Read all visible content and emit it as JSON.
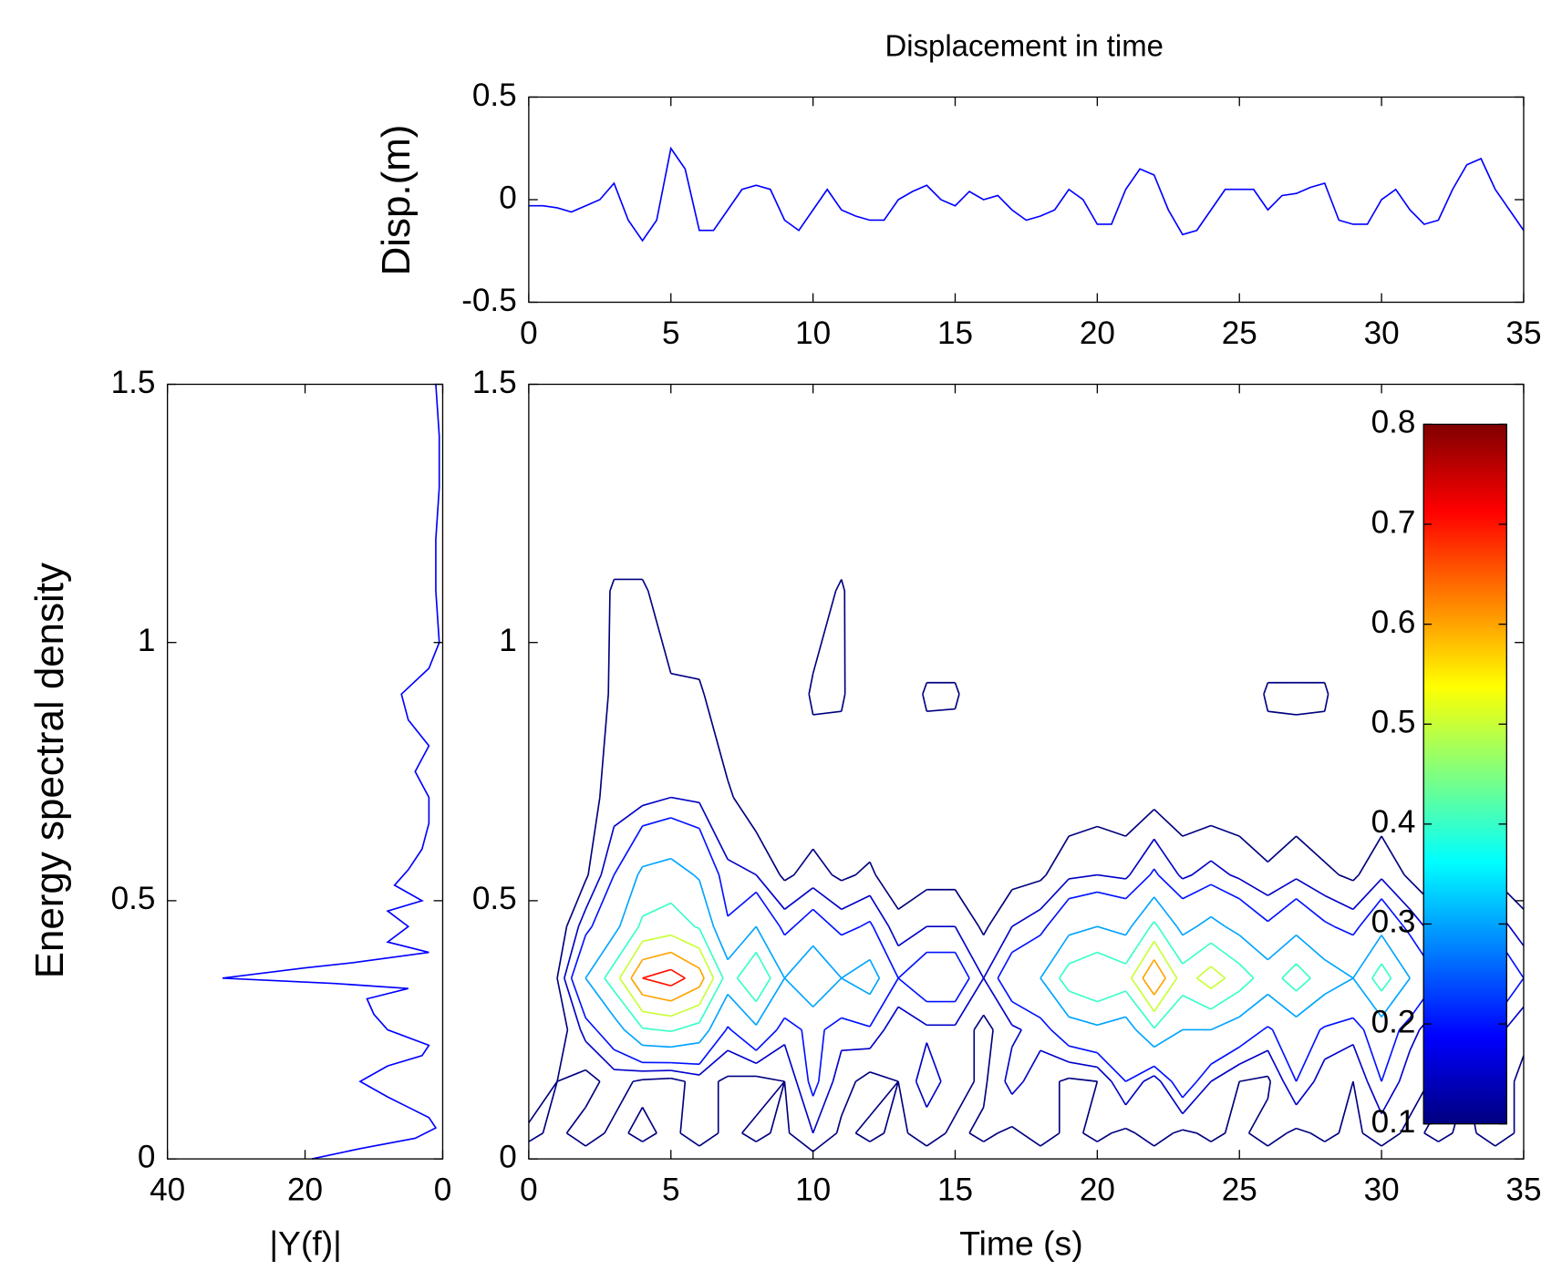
{
  "chart_data": [
    {
      "type": "line",
      "title": "Displacement in time",
      "ylabel": "Disp.(m)",
      "xlim": [
        0,
        35
      ],
      "xticks": [
        0,
        5,
        10,
        15,
        20,
        25,
        30,
        35
      ],
      "ylim": [
        -0.5,
        0.5
      ],
      "yticks": [
        -0.5,
        0,
        0.5
      ],
      "x": [
        0,
        0.5,
        1,
        1.5,
        2,
        2.5,
        3,
        3.5,
        4,
        4.5,
        5,
        5.5,
        6,
        6.5,
        7,
        7.5,
        8,
        8.5,
        9,
        9.5,
        10,
        10.5,
        11,
        11.5,
        12,
        12.5,
        13,
        13.5,
        14,
        14.5,
        15,
        15.5,
        16,
        16.5,
        17,
        17.5,
        18,
        18.5,
        19,
        19.5,
        20,
        20.5,
        21,
        21.5,
        22,
        22.5,
        23,
        23.5,
        24,
        24.5,
        25,
        25.5,
        26,
        26.5,
        27,
        27.5,
        28,
        28.5,
        29,
        29.5,
        30,
        30.5,
        31,
        31.5,
        32,
        32.5,
        33,
        33.5,
        34,
        34.5,
        35
      ],
      "series": [
        {
          "color": "#0000ff",
          "values": [
            -0.03,
            -0.03,
            -0.04,
            -0.06,
            -0.03,
            0.0,
            0.08,
            -0.1,
            -0.2,
            -0.1,
            0.25,
            0.15,
            -0.15,
            -0.15,
            -0.05,
            0.05,
            0.07,
            0.05,
            -0.1,
            -0.15,
            -0.05,
            0.05,
            -0.05,
            -0.08,
            -0.1,
            -0.1,
            0.0,
            0.04,
            0.07,
            0.0,
            -0.03,
            0.04,
            0.0,
            0.02,
            -0.05,
            -0.1,
            -0.08,
            -0.05,
            0.05,
            0.0,
            -0.12,
            -0.12,
            0.05,
            0.15,
            0.12,
            -0.05,
            -0.17,
            -0.15,
            -0.05,
            0.05,
            0.05,
            0.05,
            -0.05,
            0.02,
            0.03,
            0.06,
            0.08,
            -0.1,
            -0.12,
            -0.12,
            0.0,
            0.05,
            -0.05,
            -0.12,
            -0.1,
            0.05,
            0.17,
            0.2,
            0.05,
            -0.05,
            -0.15
          ]
        }
      ]
    },
    {
      "type": "line",
      "orientation": "horizontal",
      "xlabel": "|Y(f)|",
      "ylabel": "Energy spectral density",
      "xlim": [
        40,
        0
      ],
      "xticks": [
        40,
        20,
        0
      ],
      "ylim": [
        0,
        1.5
      ],
      "yticks": [
        0,
        0.5,
        1,
        1.5
      ],
      "y": [
        0,
        0.02,
        0.04,
        0.06,
        0.08,
        0.1,
        0.12,
        0.15,
        0.18,
        0.2,
        0.22,
        0.25,
        0.28,
        0.31,
        0.33,
        0.34,
        0.35,
        0.37,
        0.38,
        0.4,
        0.42,
        0.45,
        0.48,
        0.5,
        0.53,
        0.56,
        0.6,
        0.65,
        0.7,
        0.75,
        0.8,
        0.85,
        0.9,
        0.95,
        1.0,
        1.1,
        1.2,
        1.3,
        1.4,
        1.5
      ],
      "series": [
        {
          "color": "#0000ff",
          "values": [
            19,
            12,
            4,
            1,
            2,
            5,
            8,
            12,
            8,
            3,
            2,
            8,
            10,
            11,
            5,
            16,
            32,
            20,
            13,
            2,
            8,
            5,
            8,
            3,
            7,
            5,
            3,
            2,
            2,
            4,
            2,
            5,
            6,
            2,
            0.5,
            1,
            1,
            0.5,
            0.5,
            1
          ]
        }
      ]
    },
    {
      "type": "contour",
      "xlabel": "Time (s)",
      "colormap": "jet",
      "xlim": [
        0,
        35
      ],
      "xticks": [
        0,
        5,
        10,
        15,
        20,
        25,
        30,
        35
      ],
      "ylim": [
        0,
        1.5
      ],
      "yticks": [
        0,
        0.5,
        1,
        1.5
      ],
      "levels": [
        0.1,
        0.15,
        0.2,
        0.3,
        0.4,
        0.5,
        0.6,
        0.7
      ],
      "clim": [
        0.1,
        0.8
      ],
      "cticks": [
        0.1,
        0.2,
        0.3,
        0.4,
        0.5,
        0.6,
        0.7,
        0.8
      ],
      "x": [
        0,
        1,
        2,
        3,
        4,
        5,
        6,
        7,
        8,
        9,
        10,
        11,
        12,
        13,
        14,
        15,
        16,
        17,
        18,
        19,
        20,
        21,
        22,
        23,
        24,
        25,
        26,
        27,
        28,
        29,
        30,
        31,
        32,
        33,
        34,
        35
      ],
      "y": [
        0,
        0.05,
        0.15,
        0.25,
        0.35,
        0.45,
        0.55,
        0.7,
        0.9,
        1.1,
        1.3,
        1.5
      ],
      "z": [
        [
          0.08,
          0.08,
          0.08,
          0.08,
          0.08,
          0.08,
          0.08,
          0.08,
          0.08,
          0.08,
          0.08,
          0.08,
          0.08,
          0.08,
          0.08,
          0.08,
          0.08,
          0.08,
          0.08,
          0.08,
          0.08,
          0.08,
          0.08,
          0.08,
          0.08,
          0.08,
          0.08,
          0.08,
          0.08,
          0.08,
          0.08,
          0.08,
          0.08,
          0.08,
          0.08,
          0.08
        ],
        [
          0.11,
          0.09,
          0.12,
          0.09,
          0.11,
          0.09,
          0.12,
          0.09,
          0.11,
          0.09,
          0.15,
          0.09,
          0.11,
          0.09,
          0.12,
          0.09,
          0.11,
          0.09,
          0.12,
          0.09,
          0.11,
          0.09,
          0.12,
          0.09,
          0.11,
          0.09,
          0.12,
          0.09,
          0.11,
          0.09,
          0.12,
          0.09,
          0.11,
          0.09,
          0.12,
          0.09
        ],
        [
          0.06,
          0.1,
          0.08,
          0.12,
          0.09,
          0.08,
          0.12,
          0.09,
          0.08,
          0.1,
          0.22,
          0.12,
          0.08,
          0.1,
          0.18,
          0.12,
          0.09,
          0.17,
          0.12,
          0.09,
          0.1,
          0.2,
          0.12,
          0.25,
          0.15,
          0.1,
          0.09,
          0.2,
          0.12,
          0.1,
          0.2,
          0.12,
          0.09,
          0.1,
          0.12,
          0.09
        ],
        [
          0.03,
          0.06,
          0.17,
          0.25,
          0.39,
          0.41,
          0.36,
          0.19,
          0.28,
          0.17,
          0.22,
          0.17,
          0.19,
          0.11,
          0.14,
          0.14,
          0.08,
          0.14,
          0.17,
          0.25,
          0.28,
          0.25,
          0.39,
          0.3,
          0.3,
          0.25,
          0.19,
          0.25,
          0.19,
          0.17,
          0.25,
          0.17,
          0.11,
          0.08,
          0.17,
          0.11
        ],
        [
          0.05,
          0.1,
          0.3,
          0.45,
          0.7,
          0.75,
          0.65,
          0.35,
          0.5,
          0.3,
          0.4,
          0.3,
          0.35,
          0.2,
          0.25,
          0.25,
          0.15,
          0.25,
          0.3,
          0.45,
          0.5,
          0.45,
          0.7,
          0.45,
          0.55,
          0.45,
          0.35,
          0.45,
          0.35,
          0.3,
          0.45,
          0.3,
          0.2,
          0.15,
          0.3,
          0.2
        ],
        [
          0.03,
          0.06,
          0.18,
          0.27,
          0.42,
          0.45,
          0.39,
          0.21,
          0.3,
          0.18,
          0.24,
          0.18,
          0.21,
          0.12,
          0.15,
          0.15,
          0.09,
          0.15,
          0.18,
          0.27,
          0.3,
          0.27,
          0.42,
          0.27,
          0.33,
          0.27,
          0.21,
          0.27,
          0.21,
          0.18,
          0.27,
          0.18,
          0.12,
          0.09,
          0.18,
          0.12
        ],
        [
          0.02,
          0.03,
          0.09,
          0.2,
          0.32,
          0.34,
          0.29,
          0.16,
          0.15,
          0.09,
          0.12,
          0.09,
          0.11,
          0.06,
          0.08,
          0.08,
          0.05,
          0.08,
          0.09,
          0.14,
          0.15,
          0.14,
          0.21,
          0.14,
          0.17,
          0.14,
          0.11,
          0.14,
          0.11,
          0.09,
          0.14,
          0.09,
          0.06,
          0.05,
          0.09,
          0.06
        ],
        [
          0.03,
          0.04,
          0.08,
          0.12,
          0.13,
          0.15,
          0.14,
          0.11,
          0.06,
          0.05,
          0.06,
          0.05,
          0.05,
          0.04,
          0.05,
          0.04,
          0.03,
          0.04,
          0.05,
          0.06,
          0.07,
          0.06,
          0.08,
          0.06,
          0.06,
          0.06,
          0.05,
          0.06,
          0.05,
          0.05,
          0.06,
          0.05,
          0.04,
          0.03,
          0.05,
          0.04
        ],
        [
          0.02,
          0.03,
          0.06,
          0.11,
          0.11,
          0.11,
          0.11,
          0.05,
          0.03,
          0.04,
          0.11,
          0.11,
          0.03,
          0.04,
          0.11,
          0.11,
          0.04,
          0.03,
          0.03,
          0.03,
          0.03,
          0.03,
          0.03,
          0.03,
          0.03,
          0.04,
          0.11,
          0.11,
          0.11,
          0.03,
          0.03,
          0.03,
          0.03,
          0.03,
          0.03,
          0.03
        ],
        [
          0.02,
          0.02,
          0.04,
          0.11,
          0.11,
          0.06,
          0.04,
          0.02,
          0.02,
          0.02,
          0.06,
          0.11,
          0.02,
          0.02,
          0.02,
          0.02,
          0.02,
          0.02,
          0.02,
          0.02,
          0.02,
          0.02,
          0.02,
          0.02,
          0.02,
          0.02,
          0.02,
          0.02,
          0.02,
          0.02,
          0.02,
          0.02,
          0.02,
          0.02,
          0.02,
          0.02
        ],
        [
          0.02,
          0.02,
          0.02,
          0.02,
          0.02,
          0.02,
          0.02,
          0.02,
          0.02,
          0.02,
          0.02,
          0.02,
          0.02,
          0.02,
          0.02,
          0.02,
          0.02,
          0.02,
          0.02,
          0.02,
          0.02,
          0.02,
          0.02,
          0.02,
          0.02,
          0.02,
          0.02,
          0.02,
          0.02,
          0.02,
          0.02,
          0.02,
          0.02,
          0.02,
          0.02,
          0.02
        ],
        [
          0,
          0,
          0,
          0,
          0,
          0,
          0,
          0,
          0,
          0,
          0,
          0,
          0,
          0,
          0,
          0,
          0,
          0,
          0,
          0,
          0,
          0,
          0,
          0,
          0,
          0,
          0,
          0,
          0,
          0,
          0,
          0,
          0,
          0,
          0,
          0
        ]
      ]
    }
  ]
}
